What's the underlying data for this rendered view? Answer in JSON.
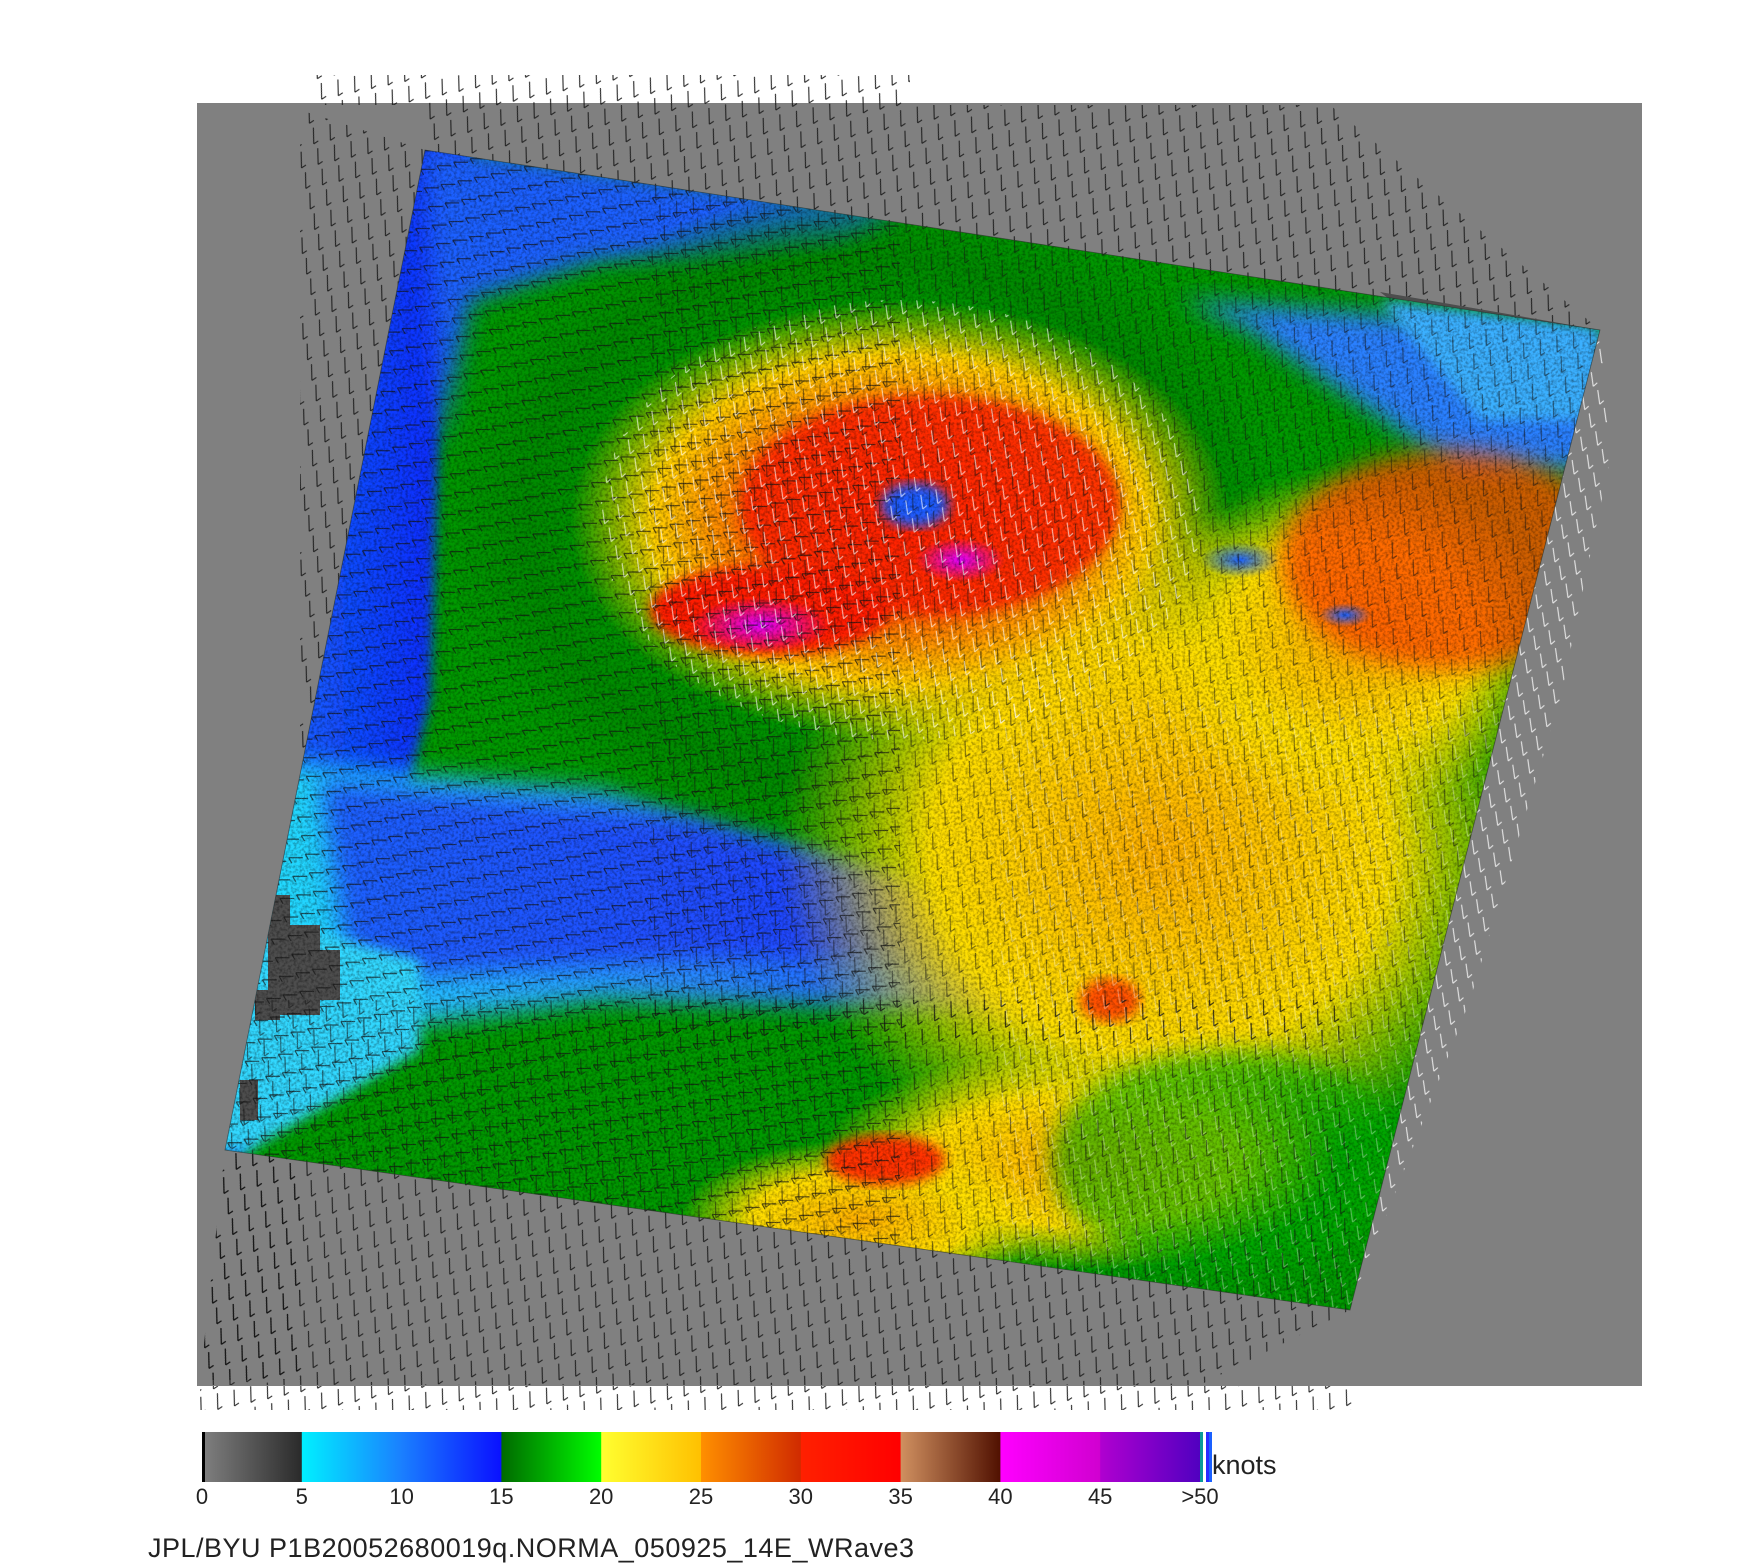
{
  "image": {
    "description_tag": "scatterometer-wind-map",
    "colors": {
      "background": "#ffffff",
      "no_data": "#808080",
      "land": "#4d4d4d",
      "barb_dark": "#111111",
      "barb_light": "#ffffff"
    }
  },
  "colorbar": {
    "units": "knots",
    "ticks": [
      "0",
      "5",
      "10",
      "15",
      "20",
      "25",
      "30",
      "35",
      "40",
      "45",
      ">50"
    ],
    "segments": [
      {
        "from": "#808080",
        "to": "#2a2a2a"
      },
      {
        "from": "#00f0ff",
        "to": "#1a7fff"
      },
      {
        "from": "#1a7fff",
        "to": "#0a10ff"
      },
      {
        "from": "#006a00",
        "to": "#00ff00"
      },
      {
        "from": "#ffff30",
        "to": "#ffc000"
      },
      {
        "from": "#ff9000",
        "to": "#d02a00"
      },
      {
        "from": "#ff2000",
        "to": "#ff0000"
      },
      {
        "from": "#d09060",
        "to": "#501000"
      },
      {
        "from": "#ff00ff",
        "to": "#d000d0"
      },
      {
        "from": "#b000d0",
        "to": "#5000c0"
      }
    ]
  },
  "footer": {
    "text": "JPL/BYU  P1B20052680019q.NORMA_050925_14E_WRave3"
  }
}
